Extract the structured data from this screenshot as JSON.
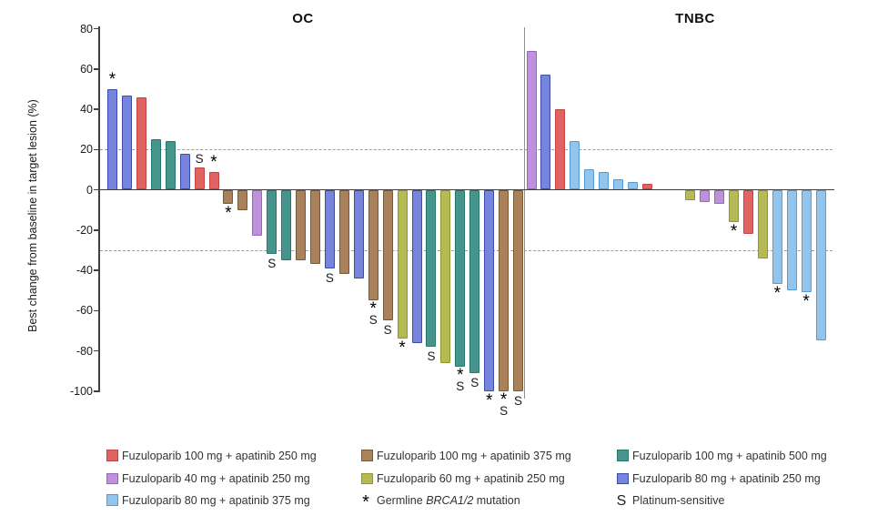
{
  "chart_data": {
    "type": "bar",
    "subtype": "waterfall",
    "ylabel": "Best change from baseline in target lesion (%)",
    "ylim": [
      -100,
      80
    ],
    "yticks": [
      80,
      60,
      40,
      20,
      0,
      -20,
      -40,
      -60,
      -80,
      -100
    ],
    "reference_lines": [
      20,
      -30
    ],
    "grid": false,
    "legend_position": "bottom",
    "series_colors": {
      "fz100_ap250": {
        "fill": "#E06361",
        "stroke": "#BE4745",
        "label": "Fuzuloparib 100 mg + apatinib 250 mg"
      },
      "fz40_ap250": {
        "fill": "#BF90DB",
        "stroke": "#A25FC6",
        "label": "Fuzuloparib 40 mg + apatinib 250 mg"
      },
      "fz80_ap375": {
        "fill": "#93C5EC",
        "stroke": "#559BD6",
        "label": "Fuzuloparib 80 mg + apatinib 375 mg"
      },
      "fz100_ap375": {
        "fill": "#A9815A",
        "stroke": "#7B5832",
        "label": "Fuzuloparib 100 mg + apatinib 375 mg"
      },
      "fz60_ap250": {
        "fill": "#B5BB52",
        "stroke": "#8F982E",
        "label": "Fuzuloparib 60 mg + apatinib 250 mg"
      },
      "fz100_ap500": {
        "fill": "#45958C",
        "stroke": "#27776D",
        "label": "Fuzuloparib 100 mg + apatinib 500 mg"
      },
      "fz80_ap250": {
        "fill": "#7685DB",
        "stroke": "#3C4BB0",
        "label": "Fuzuloparib 80 mg + apatinib 250 mg"
      }
    },
    "markers": {
      "brca": {
        "symbol": "*",
        "label_prefix": "Germline ",
        "label_italic": "BRCA1/2",
        "label_suffix": " mutation"
      },
      "platinum": {
        "symbol": "S",
        "label_prefix": "",
        "label_italic": "",
        "label_suffix": "Platinum-sensitive"
      }
    },
    "panels": [
      {
        "title": "OC",
        "bars": [
          {
            "value": 50,
            "series": "fz80_ap250",
            "marks": [
              "brca"
            ]
          },
          {
            "value": 47,
            "series": "fz80_ap250"
          },
          {
            "value": 46,
            "series": "fz100_ap250"
          },
          {
            "value": 25,
            "series": "fz100_ap500"
          },
          {
            "value": 24,
            "series": "fz100_ap500"
          },
          {
            "value": 18,
            "series": "fz80_ap250"
          },
          {
            "value": 11,
            "series": "fz100_ap250",
            "marks": [
              "platinum"
            ]
          },
          {
            "value": 9,
            "series": "fz100_ap250",
            "marks": [
              "brca"
            ]
          },
          {
            "value": -7,
            "series": "fz100_ap375",
            "marks": [
              "brca"
            ]
          },
          {
            "value": -10,
            "series": "fz100_ap375"
          },
          {
            "value": -23,
            "series": "fz40_ap250"
          },
          {
            "value": -32,
            "series": "fz100_ap500",
            "marks": [
              "platinum"
            ]
          },
          {
            "value": -35,
            "series": "fz100_ap500"
          },
          {
            "value": -35,
            "series": "fz100_ap375"
          },
          {
            "value": -37,
            "series": "fz100_ap375"
          },
          {
            "value": -39,
            "series": "fz80_ap250",
            "marks": [
              "platinum"
            ]
          },
          {
            "value": -42,
            "series": "fz100_ap375"
          },
          {
            "value": -44,
            "series": "fz80_ap250"
          },
          {
            "value": -55,
            "series": "fz100_ap375",
            "marks": [
              "brca",
              "platinum"
            ]
          },
          {
            "value": -65,
            "series": "fz100_ap375",
            "marks": [
              "platinum"
            ]
          },
          {
            "value": -74,
            "series": "fz60_ap250",
            "marks": [
              "brca"
            ]
          },
          {
            "value": -76,
            "series": "fz80_ap250"
          },
          {
            "value": -78,
            "series": "fz100_ap500",
            "marks": [
              "platinum"
            ]
          },
          {
            "value": -86,
            "series": "fz60_ap250"
          },
          {
            "value": -88,
            "series": "fz100_ap500",
            "marks": [
              "brca",
              "platinum"
            ]
          },
          {
            "value": -91,
            "series": "fz100_ap500",
            "marks": [
              "platinum"
            ]
          },
          {
            "value": -100,
            "series": "fz80_ap250",
            "marks": [
              "brca"
            ]
          },
          {
            "value": -100,
            "series": "fz100_ap375",
            "marks": [
              "brca",
              "platinum"
            ]
          },
          {
            "value": -100,
            "series": "fz100_ap375",
            "marks": [
              "platinum"
            ]
          }
        ]
      },
      {
        "title": "TNBC",
        "gap_after_index": 9,
        "gap_slots": 2,
        "bars": [
          {
            "value": 69,
            "series": "fz40_ap250"
          },
          {
            "value": 57,
            "series": "fz80_ap250"
          },
          {
            "value": 40,
            "series": "fz100_ap250"
          },
          {
            "value": 24,
            "series": "fz80_ap375"
          },
          {
            "value": 10,
            "series": "fz80_ap375"
          },
          {
            "value": 9,
            "series": "fz80_ap375"
          },
          {
            "value": 5,
            "series": "fz80_ap375"
          },
          {
            "value": 4,
            "series": "fz80_ap375"
          },
          {
            "value": 3,
            "series": "fz100_ap250"
          },
          {
            "value": -5,
            "series": "fz60_ap250"
          },
          {
            "value": -6,
            "series": "fz40_ap250"
          },
          {
            "value": -7,
            "series": "fz40_ap250"
          },
          {
            "value": -16,
            "series": "fz60_ap250",
            "marks": [
              "brca"
            ]
          },
          {
            "value": -22,
            "series": "fz100_ap250"
          },
          {
            "value": -34,
            "series": "fz60_ap250"
          },
          {
            "value": -47,
            "series": "fz80_ap375",
            "marks": [
              "brca"
            ]
          },
          {
            "value": -50,
            "series": "fz80_ap375"
          },
          {
            "value": -51,
            "series": "fz80_ap375",
            "marks": [
              "brca"
            ]
          },
          {
            "value": -75,
            "series": "fz80_ap375"
          }
        ]
      }
    ]
  },
  "legend": {
    "columns": [
      [
        {
          "type": "series",
          "key": "fz100_ap250"
        },
        {
          "type": "series",
          "key": "fz40_ap250"
        },
        {
          "type": "series",
          "key": "fz80_ap375"
        }
      ],
      [
        {
          "type": "series",
          "key": "fz100_ap375"
        },
        {
          "type": "series",
          "key": "fz60_ap250"
        },
        {
          "type": "marker",
          "key": "brca"
        }
      ],
      [
        {
          "type": "series",
          "key": "fz100_ap500"
        },
        {
          "type": "series",
          "key": "fz80_ap250"
        },
        {
          "type": "marker",
          "key": "platinum"
        }
      ]
    ]
  }
}
